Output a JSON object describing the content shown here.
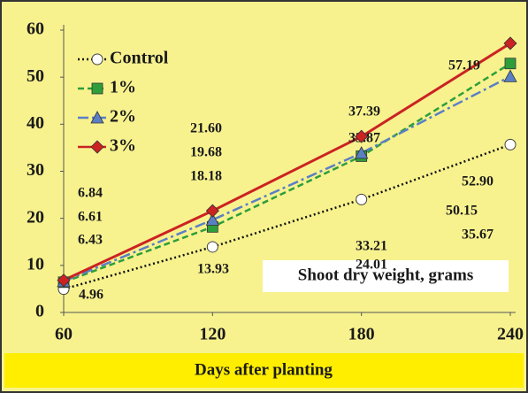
{
  "chart_data": {
    "type": "line",
    "xlabel": "Days after planting",
    "annotation": "Shoot dry weight, grams",
    "x": [
      60,
      120,
      180,
      240
    ],
    "xlim": [
      60,
      240
    ],
    "xticks": [
      60,
      120,
      180,
      240
    ],
    "ylim": [
      0,
      60
    ],
    "yticks": [
      0,
      10,
      20,
      30,
      40,
      50,
      60
    ],
    "grid": false,
    "legend": "upper left",
    "series": [
      {
        "name": "Control",
        "color": "#111111",
        "marker": "circle",
        "dash": "dotted",
        "values": [
          4.96,
          13.93,
          24.01,
          35.67
        ],
        "value_labels": [
          "4.96",
          "13.93",
          "24.01",
          "35.67"
        ]
      },
      {
        "name": "1%",
        "color": "#2e9e3a",
        "marker": "square",
        "dash": "dashed",
        "values": [
          6.43,
          18.18,
          33.21,
          52.9
        ],
        "value_labels": [
          "6.43",
          "18.18",
          "33.21",
          "52.90"
        ]
      },
      {
        "name": "2%",
        "color": "#5b7fc4",
        "marker": "triangle",
        "dash": "dashdot",
        "values": [
          6.61,
          19.68,
          33.87,
          50.15
        ],
        "value_labels": [
          "6.61",
          "19.68",
          "33.87",
          "50.15"
        ]
      },
      {
        "name": "3%",
        "color": "#cc2222",
        "marker": "diamond",
        "dash": "solid",
        "values": [
          6.84,
          21.6,
          37.39,
          57.19
        ],
        "value_labels": [
          "6.84",
          "21.60",
          "37.39",
          "57.19"
        ]
      }
    ]
  }
}
